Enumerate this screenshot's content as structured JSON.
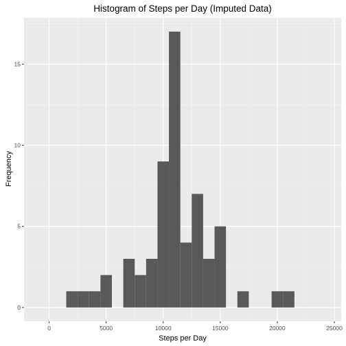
{
  "chart_data": {
    "type": "bar",
    "title": "Histogram of Steps per Day (Imputed Data)",
    "xlabel": "Steps per Day",
    "ylabel": "Frequency",
    "xlim": [
      -2200,
      25600
    ],
    "ylim": [
      -0.85,
      17.85
    ],
    "x_ticks": [
      0,
      5000,
      10000,
      15000,
      20000,
      25000
    ],
    "x_tick_labels": [
      "0",
      "5000",
      "10000",
      "15000",
      "20000",
      "25000"
    ],
    "y_ticks": [
      0,
      5,
      10,
      15
    ],
    "y_tick_labels": [
      "0",
      "5",
      "10",
      "15"
    ],
    "grid": true,
    "bin_width": 1000,
    "bins": [
      {
        "x0": 1500,
        "x1": 2500,
        "count": 1
      },
      {
        "x0": 2500,
        "x1": 3500,
        "count": 1
      },
      {
        "x0": 3500,
        "x1": 4500,
        "count": 1
      },
      {
        "x0": 4500,
        "x1": 5500,
        "count": 2
      },
      {
        "x0": 6500,
        "x1": 7500,
        "count": 3
      },
      {
        "x0": 7500,
        "x1": 8500,
        "count": 2
      },
      {
        "x0": 8500,
        "x1": 9500,
        "count": 3
      },
      {
        "x0": 9500,
        "x1": 10500,
        "count": 9
      },
      {
        "x0": 10500,
        "x1": 11500,
        "count": 17
      },
      {
        "x0": 11500,
        "x1": 12500,
        "count": 4
      },
      {
        "x0": 12500,
        "x1": 13500,
        "count": 7
      },
      {
        "x0": 13500,
        "x1": 14500,
        "count": 3
      },
      {
        "x0": 14500,
        "x1": 15500,
        "count": 5
      },
      {
        "x0": 16500,
        "x1": 17500,
        "count": 1
      },
      {
        "x0": 19500,
        "x1": 20500,
        "count": 1
      },
      {
        "x0": 20500,
        "x1": 21500,
        "count": 1
      }
    ],
    "colors": {
      "panel": "#ebebeb",
      "grid_major": "#ffffff",
      "grid_minor": "#f5f5f5",
      "bar": "#595959",
      "tick": "#333333"
    }
  }
}
